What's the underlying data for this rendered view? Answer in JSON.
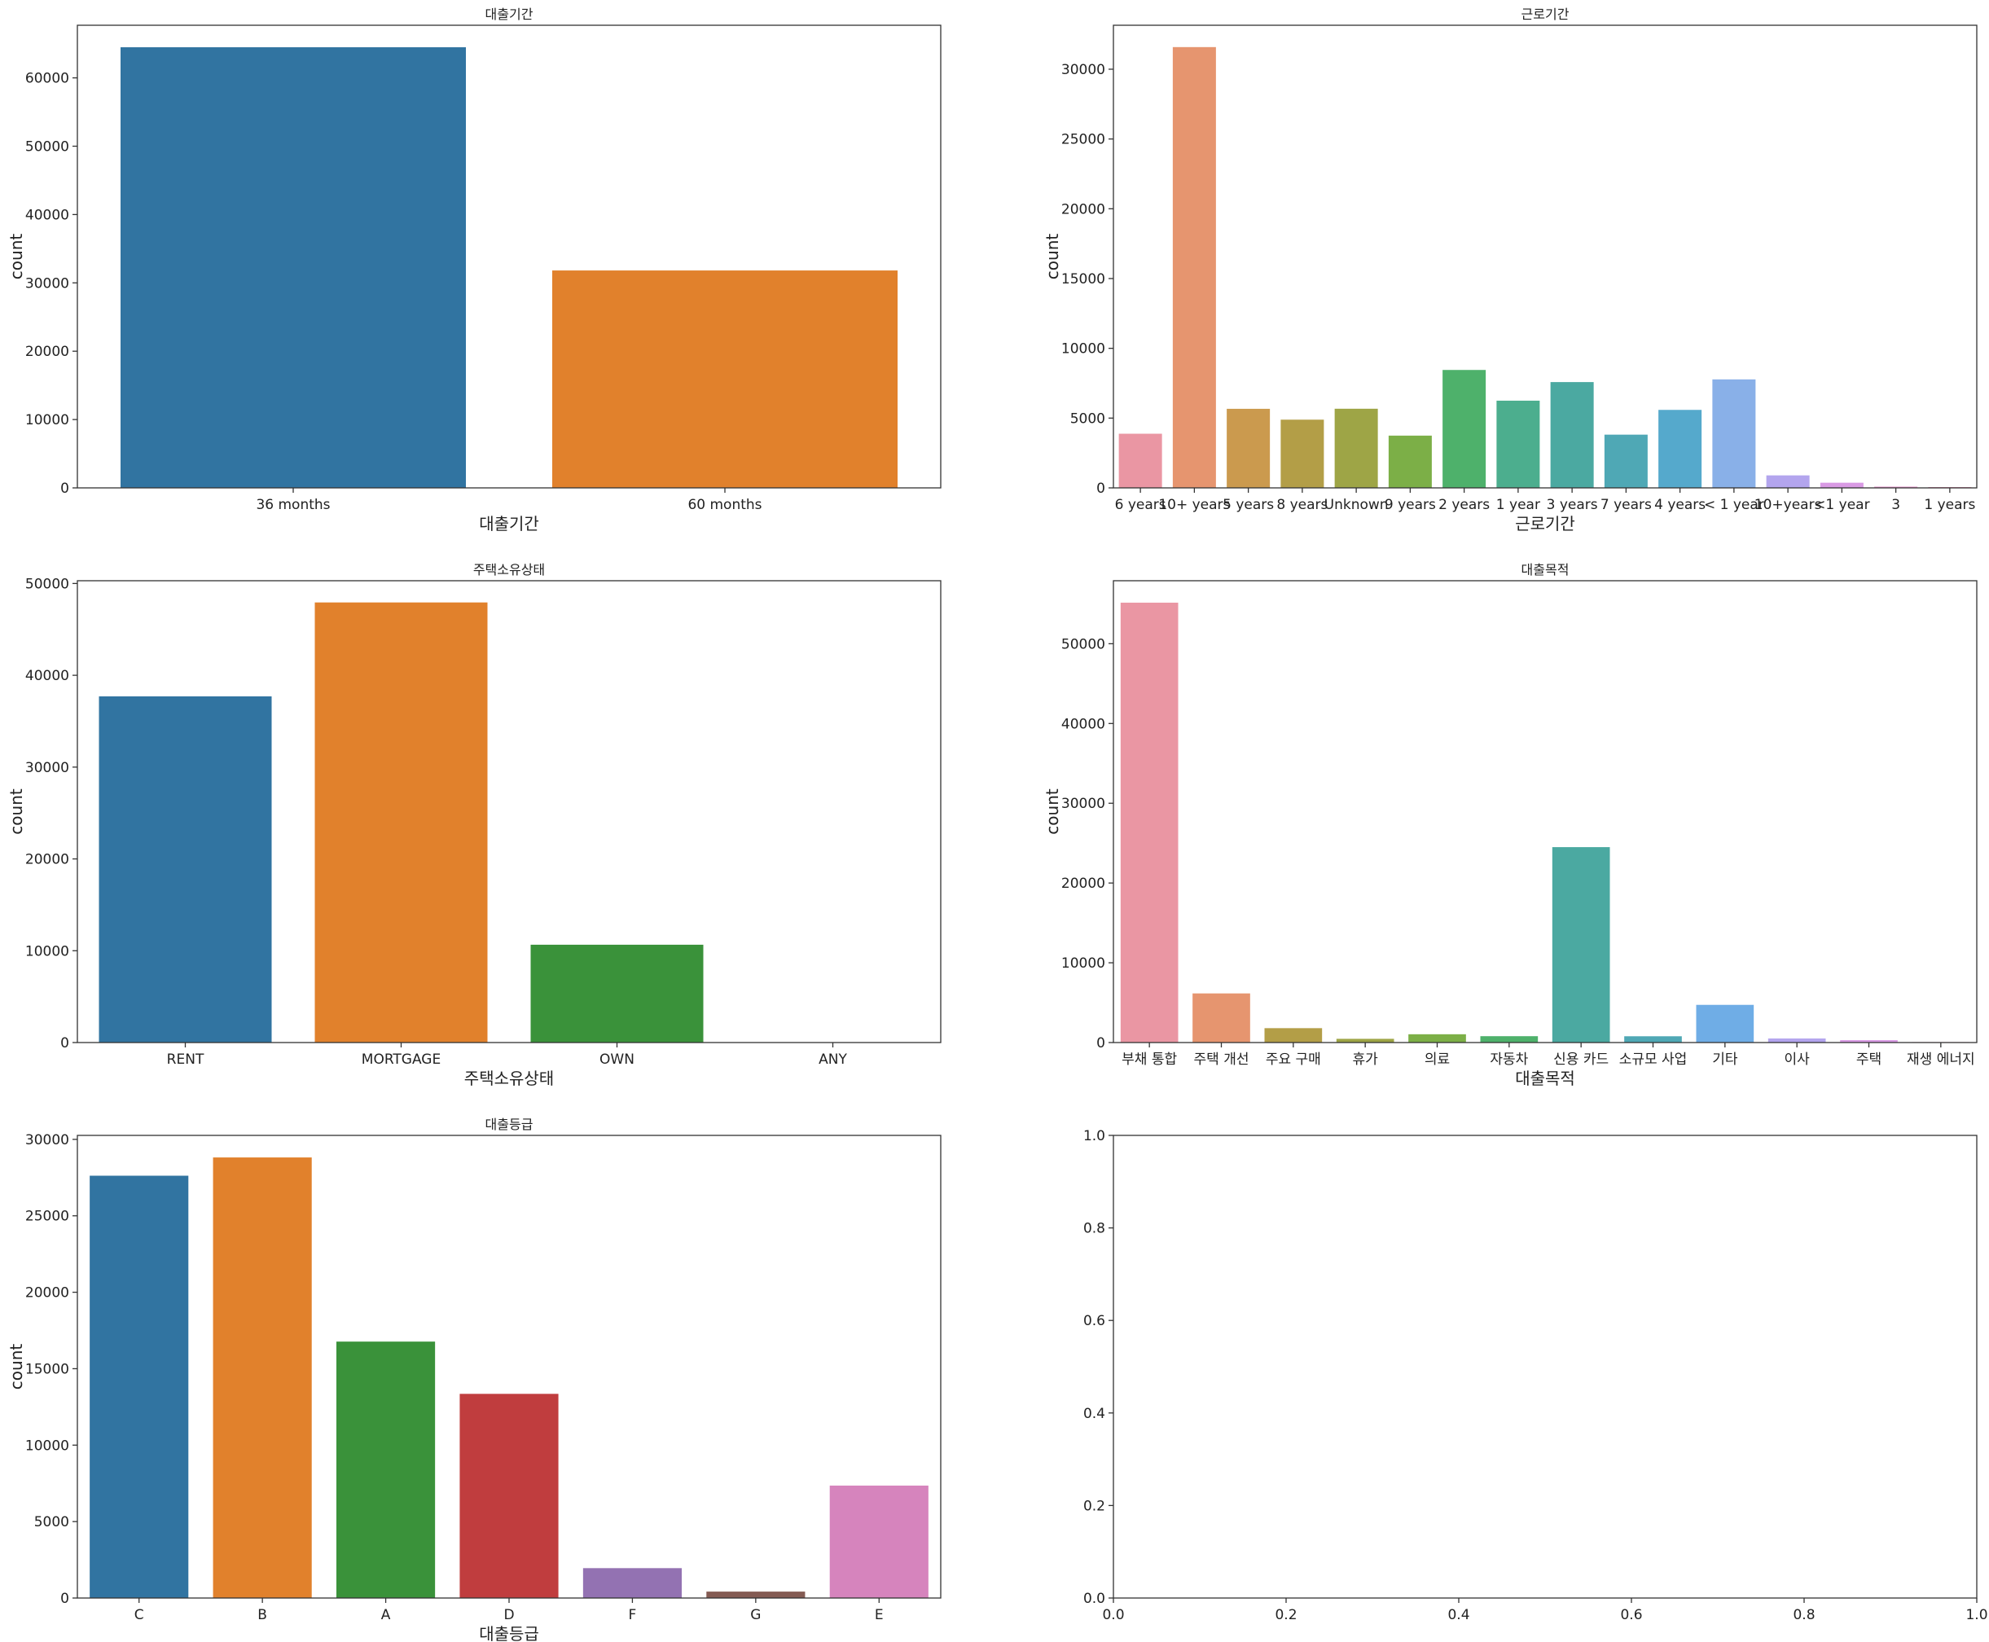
{
  "chart_data": [
    {
      "type": "bar",
      "title": "대출기간",
      "xlabel": "대출기간",
      "ylabel": "count",
      "categories": [
        "36 months",
        "60 months"
      ],
      "values": [
        64479,
        31815
      ],
      "colors": [
        "#3174a1",
        "#e1812c"
      ],
      "ylim": [
        0,
        67700
      ],
      "yticks": [
        0,
        10000,
        20000,
        30000,
        40000,
        50000,
        60000
      ],
      "grid": false
    },
    {
      "type": "bar",
      "title": "근로기간",
      "xlabel": "근로기간",
      "ylabel": "count",
      "categories": [
        "6 years",
        "10+ years",
        "5 years",
        "8 years",
        "Unknown",
        "9 years",
        "2 years",
        "1 year",
        "3 years",
        "7 years",
        "4 years",
        "< 1 year",
        "10+years",
        "<1 year",
        "3",
        "1 years"
      ],
      "values": [
        3880,
        31585,
        5665,
        4888,
        5671,
        3744,
        8450,
        6249,
        7581,
        3814,
        5588,
        7774,
        896,
        370,
        89,
        56
      ],
      "colors": [
        "#ea96a3",
        "#e6956f",
        "#cb9a4e",
        "#b39e47",
        "#9ea546",
        "#7caf47",
        "#4eb16b",
        "#4cae8e",
        "#4ba9a1",
        "#4fa8b5",
        "#55a9cc",
        "#89b0e8",
        "#b3a5ee",
        "#d99ae4",
        "#e795cd",
        "#ea93b6"
      ],
      "ylim": [
        0,
        33150
      ],
      "yticks": [
        0,
        5000,
        10000,
        15000,
        20000,
        25000,
        30000
      ],
      "grid": false
    },
    {
      "type": "bar",
      "title": "주택소유상태",
      "xlabel": "주택소유상태",
      "ylabel": "count",
      "categories": [
        "RENT",
        "MORTGAGE",
        "OWN",
        "ANY"
      ],
      "values": [
        37705,
        47934,
        10654,
        1
      ],
      "colors": [
        "#3174a1",
        "#e1812c",
        "#3a923a",
        "#c03d3e"
      ],
      "ylim": [
        0,
        50300
      ],
      "yticks": [
        0,
        10000,
        20000,
        30000,
        40000,
        50000
      ],
      "grid": false
    },
    {
      "type": "bar",
      "title": "대출목적",
      "xlabel": "대출목적",
      "ylabel": "count",
      "categories": [
        "부채 통합",
        "주택 개선",
        "주요 구매",
        "휴가",
        "의료",
        "자동차",
        "신용 카드",
        "소규모 사업",
        "기타",
        "이사",
        "주택",
        "재생 에너지"
      ],
      "values": [
        55150,
        6160,
        1803,
        466,
        1039,
        797,
        24500,
        787,
        4725,
        506,
        301,
        60
      ],
      "colors": [
        "#ea96a3",
        "#e6956f",
        "#b39e47",
        "#9ea546",
        "#7caf47",
        "#4eb16b",
        "#4ba9a1",
        "#4fa8b5",
        "#6fade6",
        "#b3a5ee",
        "#d99ae4",
        "#ea93b6"
      ],
      "ylim": [
        0,
        57900
      ],
      "yticks": [
        0,
        10000,
        20000,
        30000,
        40000,
        50000
      ],
      "grid": false
    },
    {
      "type": "bar",
      "title": "대출등급",
      "xlabel": "대출등급",
      "ylabel": "count",
      "categories": [
        "C",
        "B",
        "A",
        "D",
        "F",
        "G",
        "E"
      ],
      "values": [
        27623,
        28817,
        16772,
        13354,
        1954,
        420,
        7354
      ],
      "colors": [
        "#3174a1",
        "#e1812c",
        "#3a923a",
        "#c03d3e",
        "#9372b2",
        "#845b53",
        "#d684bd"
      ],
      "ylim": [
        0,
        30260
      ],
      "yticks": [
        0,
        5000,
        10000,
        15000,
        20000,
        25000,
        30000
      ],
      "grid": false
    },
    {
      "type": "scatter",
      "x": [],
      "y": [],
      "xlim": [
        0,
        1
      ],
      "ylim": [
        0,
        1
      ],
      "xticks": [
        "0.0",
        "0.2",
        "0.4",
        "0.6",
        "0.8",
        "1.0"
      ],
      "yticks": [
        "0.0",
        "0.2",
        "0.4",
        "0.6",
        "0.8",
        "1.0"
      ],
      "grid": false
    }
  ]
}
